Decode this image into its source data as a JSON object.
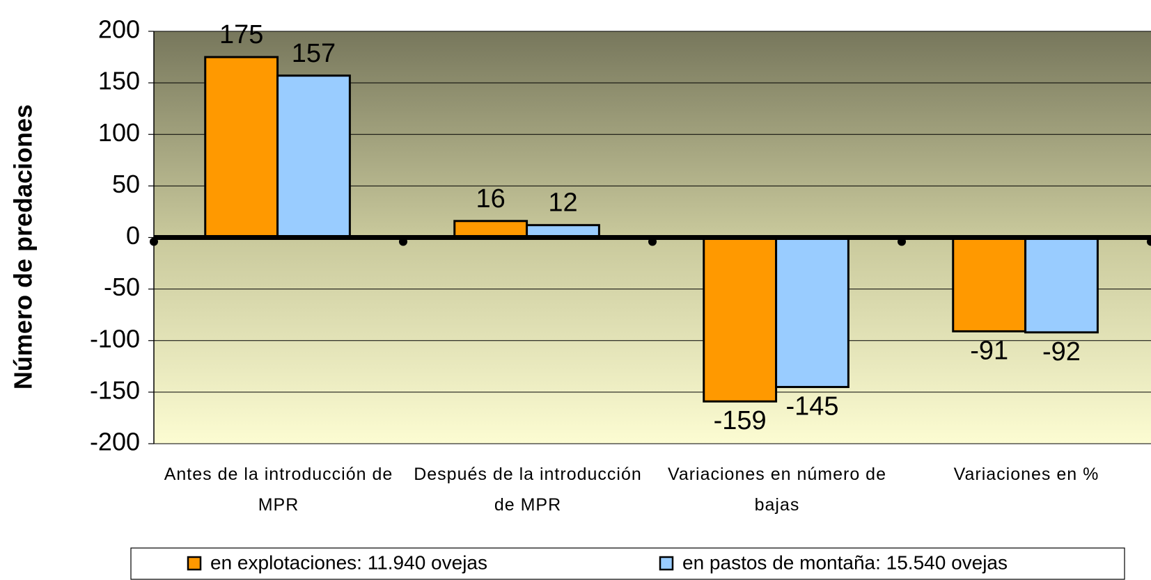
{
  "chart_data": {
    "type": "bar",
    "y_axis_label": "Número de predaciones",
    "categories": [
      "Antes de la introducción de MPR",
      "Después de la introducción de MPR",
      "Variaciones en número de bajas",
      "Variaciones en %"
    ],
    "series": [
      {
        "name": "en explotaciones: 11.940 ovejas",
        "color": "#ff9900",
        "values": [
          175,
          16,
          -159,
          -91
        ]
      },
      {
        "name": "en pastos de montaña: 15.540 ovejas",
        "color": "#99ccff",
        "values": [
          157,
          12,
          -145,
          -92
        ]
      }
    ],
    "ylim": [
      -200,
      200
    ],
    "yticks": [
      -200,
      -150,
      -100,
      -50,
      0,
      50,
      100,
      150,
      200
    ],
    "grid": true,
    "legend": "bottom"
  }
}
